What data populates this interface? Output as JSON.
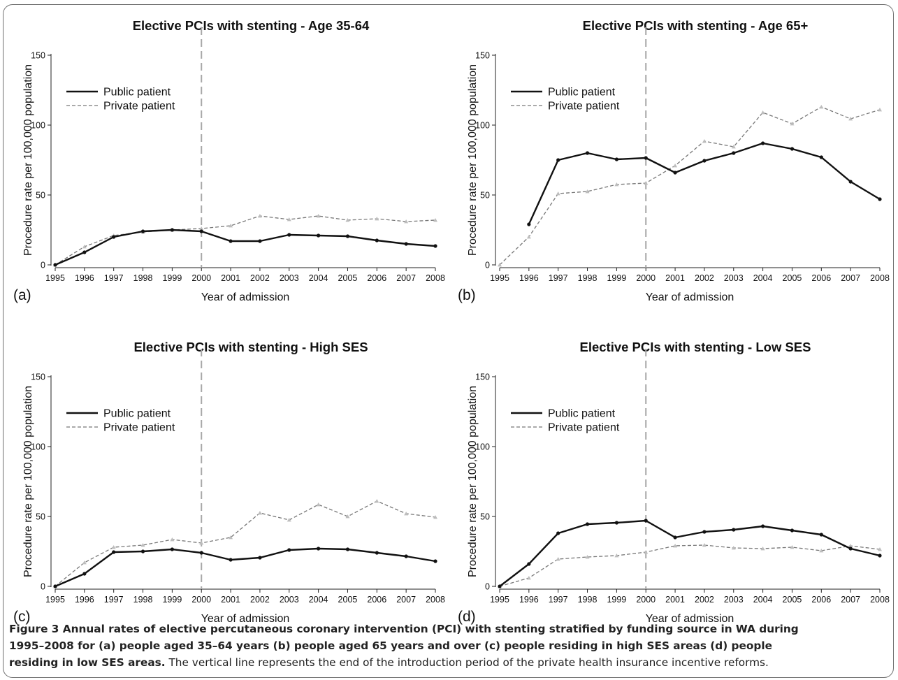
{
  "colors": {
    "public_line": "#111111",
    "private_line": "#777777",
    "private_marker": "#bdbdbd",
    "reference_line": "#a8a8a8",
    "axis": "#222222",
    "frame": "#6f6f6f"
  },
  "chart_data": [
    {
      "type": "line",
      "panel_label": "(a)",
      "title": "Elective PCIs with stenting - Age 35-64",
      "xlabel": "Year of admission",
      "ylabel": "Procedure rate per 100,000 population",
      "x": [
        1995,
        1996,
        1997,
        1998,
        1999,
        2000,
        2001,
        2002,
        2003,
        2004,
        2005,
        2006,
        2007,
        2008
      ],
      "xticks": [
        "1995",
        "1996",
        "1997",
        "1998",
        "1999",
        "2000",
        "2001",
        "2002",
        "2003",
        "2004",
        "2005",
        "2006",
        "2007",
        "2008"
      ],
      "ylim": [
        0,
        150
      ],
      "yticks": [
        0,
        50,
        100,
        150
      ],
      "reference_x": 2000,
      "legend_position": "top-left",
      "grid": false,
      "series": [
        {
          "name": "Public patient",
          "style": "solid",
          "values": [
            0,
            9,
            20,
            24,
            25,
            24,
            17,
            17,
            21.5,
            21,
            20.5,
            17.5,
            15,
            13.5
          ]
        },
        {
          "name": "Private patient",
          "style": "dashed",
          "values": [
            0,
            13,
            21,
            23.5,
            25,
            26,
            28,
            35,
            32.5,
            35,
            32,
            33,
            31,
            32
          ]
        }
      ]
    },
    {
      "type": "line",
      "panel_label": "(b)",
      "title": "Elective PCIs with stenting - Age 65+",
      "xlabel": "Year of admission",
      "ylabel": "Procedure rate per 100,000 population",
      "x": [
        1995,
        1996,
        1997,
        1998,
        1999,
        2000,
        2001,
        2002,
        2003,
        2004,
        2005,
        2006,
        2007,
        2008
      ],
      "xticks": [
        "1995",
        "1996",
        "1997",
        "1998",
        "1999",
        "2000",
        "2001",
        "2002",
        "2003",
        "2004",
        "2005",
        "2006",
        "2007",
        "2008"
      ],
      "ylim": [
        0,
        150
      ],
      "yticks": [
        0,
        50,
        100,
        150
      ],
      "reference_x": 2000,
      "legend_position": "top-left",
      "grid": false,
      "series": [
        {
          "name": "Public patient",
          "style": "solid",
          "values": [
            null,
            29,
            75,
            80,
            75.5,
            76.5,
            66,
            74.5,
            80,
            87,
            83,
            77,
            59.5,
            47
          ]
        },
        {
          "name": "Private patient",
          "style": "dashed",
          "values": [
            0,
            20,
            51,
            52.5,
            57.5,
            58.5,
            71,
            88.5,
            84.5,
            109,
            101,
            113,
            104.5,
            111
          ]
        }
      ]
    },
    {
      "type": "line",
      "panel_label": "(c)",
      "title": "Elective PCIs with stenting - High SES",
      "xlabel": "Year of admission",
      "ylabel": "Procedure rate per 100,000 population",
      "x": [
        1995,
        1996,
        1997,
        1998,
        1999,
        2000,
        2001,
        2002,
        2003,
        2004,
        2005,
        2006,
        2007,
        2008
      ],
      "xticks": [
        "1995",
        "1996",
        "1997",
        "1998",
        "1999",
        "2000",
        "2001",
        "2002",
        "2003",
        "2004",
        "2005",
        "2006",
        "2007",
        "2008"
      ],
      "ylim": [
        0,
        150
      ],
      "yticks": [
        0,
        50,
        100,
        150
      ],
      "reference_x": 2000,
      "legend_position": "top-left",
      "grid": false,
      "series": [
        {
          "name": "Public patient",
          "style": "solid",
          "values": [
            0,
            9,
            24.5,
            25,
            26.5,
            24,
            19,
            20.5,
            26,
            27,
            26.5,
            24,
            21.5,
            18
          ]
        },
        {
          "name": "Private patient",
          "style": "dashed",
          "values": [
            0,
            17,
            28,
            29.5,
            33.5,
            31,
            35,
            52.5,
            47.5,
            58.5,
            50,
            61,
            52,
            49.5
          ]
        }
      ]
    },
    {
      "type": "line",
      "panel_label": "(d)",
      "title": "Elective PCIs with stenting - Low SES",
      "xlabel": "Year of admission",
      "ylabel": "Procedure rate per 100,000 population",
      "x": [
        1995,
        1996,
        1997,
        1998,
        1999,
        2000,
        2001,
        2002,
        2003,
        2004,
        2005,
        2006,
        2007,
        2008
      ],
      "xticks": [
        "1995",
        "1996",
        "1997",
        "1998",
        "1999",
        "2000",
        "2001",
        "2002",
        "2003",
        "2004",
        "2005",
        "2006",
        "2007",
        "2008"
      ],
      "ylim": [
        0,
        150
      ],
      "yticks": [
        0,
        50,
        100,
        150
      ],
      "reference_x": 2000,
      "legend_position": "top-left",
      "grid": false,
      "series": [
        {
          "name": "Public patient",
          "style": "solid",
          "values": [
            0,
            16,
            38,
            44.5,
            45.5,
            47,
            35,
            39,
            40.5,
            43,
            40,
            37,
            27,
            22
          ]
        },
        {
          "name": "Private patient",
          "style": "dashed",
          "values": [
            0,
            6,
            19.5,
            21,
            22,
            24.5,
            29,
            29.5,
            27.5,
            27,
            28,
            25.5,
            29,
            26.5
          ]
        }
      ]
    }
  ],
  "caption": {
    "bold_lines": [
      "Figure 3 Annual rates of elective percutaneous coronary intervention (PCI) with stenting stratified by funding source in WA during",
      "1995–2008 for (a) people aged 35–64 years (b) people aged 65 years and over (c) people residing in high SES areas (d) people"
    ],
    "bold_tail": "residing in low SES areas.",
    "normal_tail": " The vertical line represents the end of the introduction period of the private health insurance incentive reforms."
  }
}
